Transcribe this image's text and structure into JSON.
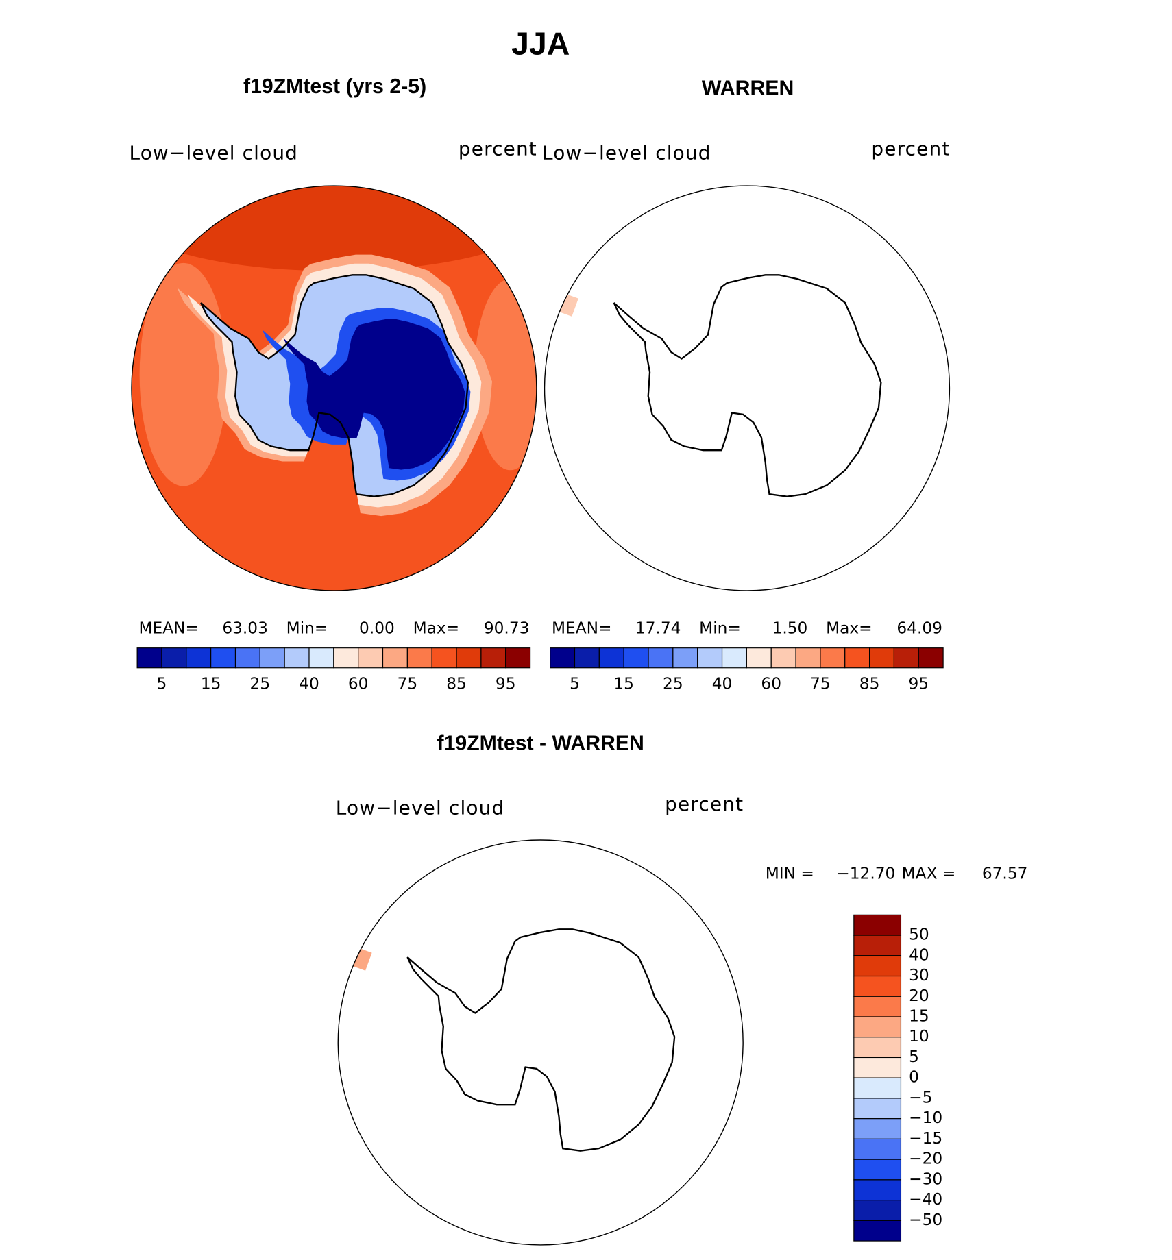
{
  "title": "JJA",
  "panels": [
    {
      "title": "f19ZMtest (yrs 2-5)",
      "left_string": "Low−level cloud",
      "right_string": "percent",
      "stats": [
        "MEAN=",
        "63.03",
        "Min=",
        "0.00",
        "Max=",
        "90.73"
      ]
    },
    {
      "title": "WARREN",
      "left_string": "Low−level cloud",
      "right_string": "percent",
      "stats": [
        "MEAN=",
        "17.74",
        "Min=",
        "1.50",
        "Max=",
        "64.09"
      ]
    }
  ],
  "colorbar": {
    "colors": [
      "#00008c",
      "#0a1eaa",
      "#0d33d6",
      "#1f4ff0",
      "#4a73f5",
      "#7c9ff8",
      "#b3cbfb",
      "#d9eafd",
      "#fde9dc",
      "#fdcbb2",
      "#fca883",
      "#fb7a4a",
      "#f5531f",
      "#e03b0a",
      "#b81f08",
      "#8b0000"
    ],
    "labels": [
      "5",
      "15",
      "25",
      "40",
      "60",
      "75",
      "85",
      "95"
    ]
  },
  "difference": {
    "title": "f19ZMtest - WARREN",
    "left_string": "Low−level cloud",
    "right_string": "percent",
    "stats": [
      "MIN =",
      "−12.70",
      "MAX =",
      "67.57"
    ],
    "colorbar": {
      "colors": [
        "#8b0000",
        "#b81f08",
        "#e03b0a",
        "#f5531f",
        "#fb7a4a",
        "#fca883",
        "#fdcbb2",
        "#fde9dc",
        "#d9eafd",
        "#b3cbfb",
        "#7c9ff8",
        "#4a73f5",
        "#1f4ff0",
        "#0d33d6",
        "#0a1eaa",
        "#00008c"
      ],
      "labels": [
        "50",
        "40",
        "30",
        "20",
        "15",
        "10",
        "5",
        "0",
        "−5",
        "−10",
        "−15",
        "−20",
        "−30",
        "−40",
        "−50"
      ]
    }
  }
}
